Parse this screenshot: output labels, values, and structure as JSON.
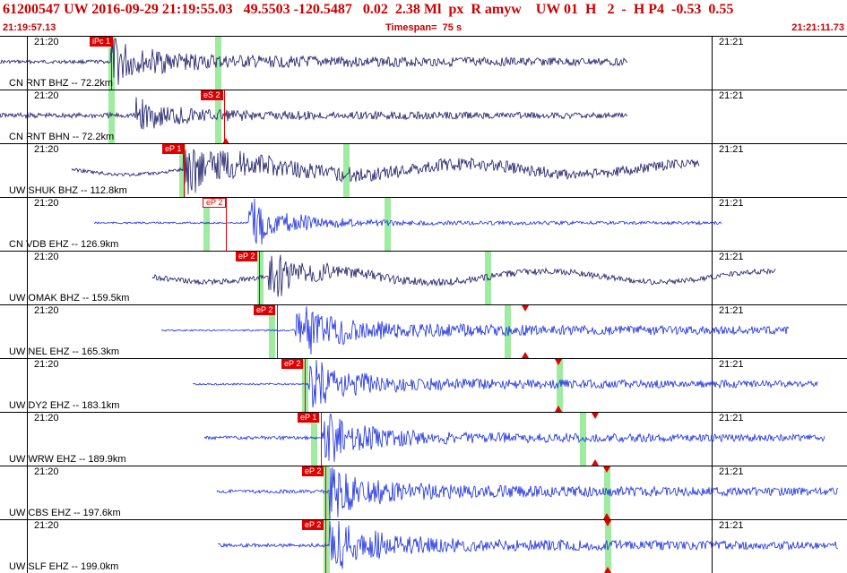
{
  "header": {
    "title": "61200547 UW 2016-09-29 21:19:55.03   49.5503 -120.5487   0.02  2.38 Ml  px  R amyw    UW 01  H   2  -  H P4  -0.53  0.55",
    "time_start": "21:19:57.13",
    "timespan": "Timespan=  75 s",
    "time_end": "21:21:11.73"
  },
  "tick_labels": {
    "left": "21:20",
    "right": "21:21"
  },
  "panels": [
    {
      "station": "CN RNT BHZ -- 72.2km",
      "pick": "iPc 1",
      "pick_style": "solid",
      "color": "#1a1a66"
    },
    {
      "station": "CN RNT BHN -- 72.2km",
      "pick": "eS 2",
      "pick_style": "solid",
      "color": "#1a1a66"
    },
    {
      "station": "UW SHUK BHZ -- 112.8km",
      "pick": "eP 1",
      "pick_style": "solid",
      "color": "#1a1a66"
    },
    {
      "station": "CN VDB EHZ -- 126.9km",
      "pick": "eP 2",
      "pick_style": "alt",
      "color": "#1a2ee0"
    },
    {
      "station": "UW OMAK BHZ -- 159.5km",
      "pick": "eP 2",
      "pick_style": "solid",
      "color": "#1a1a66"
    },
    {
      "station": "UW NEL EHZ -- 165.3km",
      "pick": "eP 2",
      "pick_style": "solid",
      "color": "#1a2ee0"
    },
    {
      "station": "UW DY2 EHZ -- 183.1km",
      "pick": "eP 2",
      "pick_style": "solid",
      "color": "#1a2ee0"
    },
    {
      "station": "UW WRW EHZ -- 189.9km",
      "pick": "eP 1",
      "pick_style": "solid",
      "color": "#1a2ee0"
    },
    {
      "station": "UW CBS EHZ -- 197.6km",
      "pick": "eP 2",
      "pick_style": "solid",
      "color": "#1a2ee0"
    },
    {
      "station": "UW SLF EHZ -- 199.0km",
      "pick": "eP 2",
      "pick_style": "solid",
      "color": "#1a2ee0"
    }
  ]
}
